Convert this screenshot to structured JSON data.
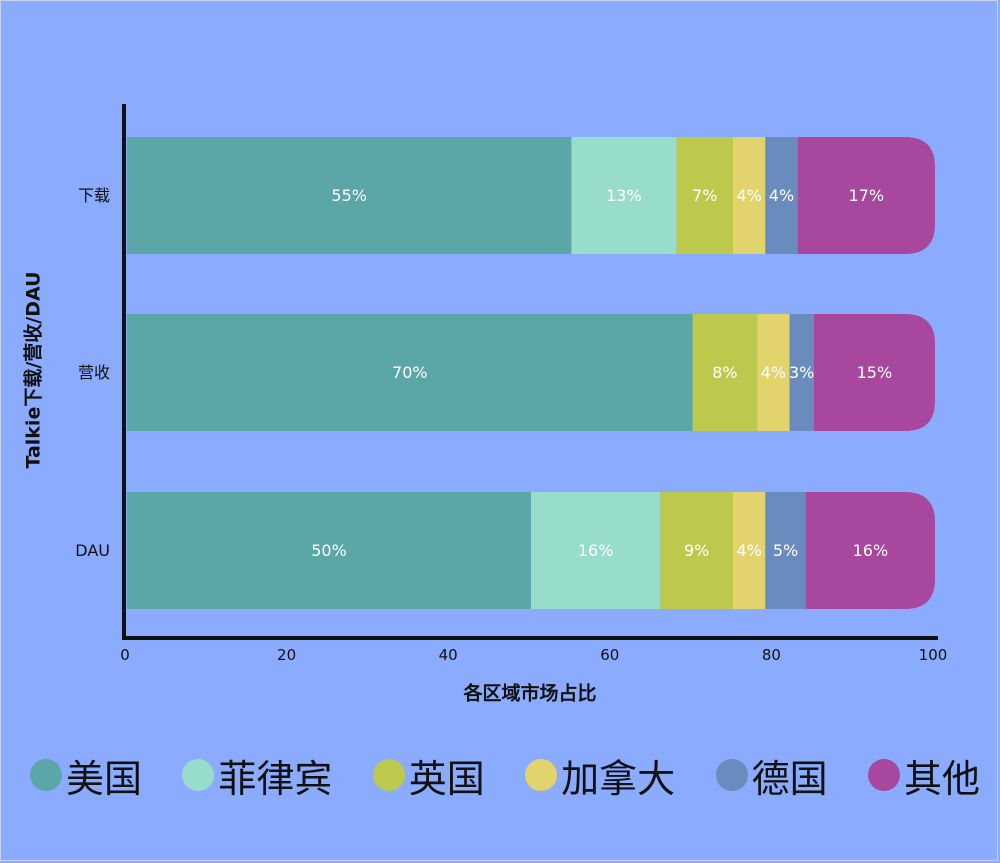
{
  "chart_data": {
    "type": "bar",
    "orientation": "horizontal",
    "stacked": true,
    "categories": [
      "下载",
      "营收",
      "DAU"
    ],
    "xlabel": "各区域市场占比",
    "ylabel": "Talkie下载/营收/DAU",
    "xlim": [
      0,
      100
    ],
    "xticks": [
      0,
      20,
      40,
      60,
      80,
      100
    ],
    "legend_position": "bottom",
    "series": [
      {
        "name": "美国",
        "color": "#5ba6a6",
        "values": [
          55,
          70,
          50
        ]
      },
      {
        "name": "菲律宾",
        "color": "#98dccb",
        "values": [
          13,
          0,
          16
        ]
      },
      {
        "name": "英国",
        "color": "#bdc94c",
        "values": [
          7,
          8,
          9
        ]
      },
      {
        "name": "加拿大",
        "color": "#e3d36c",
        "values": [
          4,
          4,
          4
        ]
      },
      {
        "name": "德国",
        "color": "#6a8bbd",
        "values": [
          4,
          3,
          5
        ]
      },
      {
        "name": "其他",
        "color": "#a7489e",
        "values": [
          17,
          15,
          16
        ]
      }
    ]
  }
}
